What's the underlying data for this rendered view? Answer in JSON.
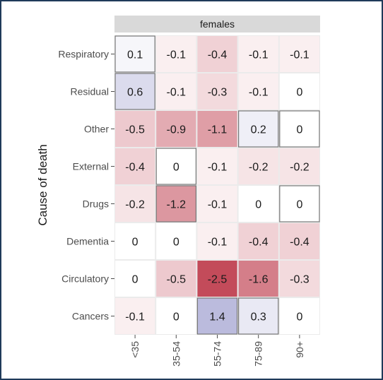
{
  "chart_data": {
    "type": "heatmap",
    "facet_label": "females",
    "ylabel": "Cause of death",
    "xlabel": "",
    "columns": [
      "<35",
      "35-54",
      "55-74",
      "75-89",
      "90+"
    ],
    "rows": [
      "Respiratory",
      "Residual",
      "Other",
      "External",
      "Drugs",
      "Dementia",
      "Circulatory",
      "Cancers"
    ],
    "values": [
      [
        0.1,
        -0.1,
        -0.4,
        -0.1,
        -0.1
      ],
      [
        0.6,
        -0.1,
        -0.3,
        -0.1,
        0
      ],
      [
        -0.5,
        -0.9,
        -1.1,
        0.2,
        0
      ],
      [
        -0.4,
        0,
        -0.1,
        -0.2,
        -0.2
      ],
      [
        -0.2,
        -1.2,
        -0.1,
        0,
        0
      ],
      [
        0,
        0,
        -0.1,
        -0.4,
        -0.4
      ],
      [
        0,
        -0.5,
        -2.5,
        -1.6,
        -0.3
      ],
      [
        -0.1,
        0,
        1.4,
        0.3,
        0
      ]
    ],
    "value_labels": [
      [
        "0.1",
        "-0.1",
        "-0.4",
        "-0.1",
        "-0.1"
      ],
      [
        "0.6",
        "-0.1",
        "-0.3",
        "-0.1",
        "0"
      ],
      [
        "-0.5",
        "-0.9",
        "-1.1",
        "0.2",
        "0"
      ],
      [
        "-0.4",
        "0",
        "-0.1",
        "-0.2",
        "-0.2"
      ],
      [
        "-0.2",
        "-1.2",
        "-0.1",
        "0",
        "0"
      ],
      [
        "0",
        "0",
        "-0.1",
        "-0.4",
        "-0.4"
      ],
      [
        "0",
        "-0.5",
        "-2.5",
        "-1.6",
        "-0.3"
      ],
      [
        "-0.1",
        "0",
        "1.4",
        "0.3",
        "0"
      ]
    ],
    "outlined_cells": [
      [
        0,
        0
      ],
      [
        1,
        0
      ],
      [
        2,
        3
      ],
      [
        2,
        4
      ],
      [
        3,
        1
      ],
      [
        4,
        1
      ],
      [
        4,
        4
      ],
      [
        7,
        2
      ],
      [
        7,
        3
      ]
    ],
    "color_scale": {
      "negative": "#b2182b",
      "zero": "#ffffff",
      "positive": "#3f3fa0",
      "limit": 2.5
    },
    "colors": {
      "strip_background": "#d9d9d9",
      "panel_background": "#ebebeb",
      "frame": "#1f3a5a"
    },
    "grid": false,
    "legend": "none"
  }
}
